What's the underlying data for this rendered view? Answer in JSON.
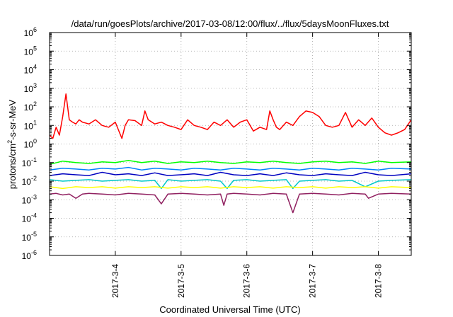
{
  "chart_data": {
    "type": "line",
    "title": "/data/run/goesPlots/archive/2017-03-08/12:00/flux/../flux/5daysMoonFluxes.txt",
    "xlabel": "Coordinated Universal Time (UTC)",
    "ylabel": "protons/cm²-s-sr-MeV",
    "ylabel_parts": {
      "pre": "protons/cm",
      "sup": "2",
      "post": "-s-sr-MeV"
    },
    "xlim": [
      3.0,
      8.5
    ],
    "yscale": "log",
    "ylim": [
      1e-06,
      1000000.0
    ],
    "yticks": [
      {
        "value": -6,
        "base": "10",
        "exp": "-6"
      },
      {
        "value": -5,
        "base": "10",
        "exp": "-5"
      },
      {
        "value": -4,
        "base": "10",
        "exp": "-4"
      },
      {
        "value": -3,
        "base": "10",
        "exp": "-3"
      },
      {
        "value": -2,
        "base": "10",
        "exp": "-2"
      },
      {
        "value": -1,
        "base": "10",
        "exp": "-1"
      },
      {
        "value": 0,
        "base": "10",
        "exp": "0"
      },
      {
        "value": 1,
        "base": "10",
        "exp": "1"
      },
      {
        "value": 2,
        "base": "10",
        "exp": "2"
      },
      {
        "value": 3,
        "base": "10",
        "exp": "3"
      },
      {
        "value": 4,
        "base": "10",
        "exp": "4"
      },
      {
        "value": 5,
        "base": "10",
        "exp": "5"
      },
      {
        "value": 6,
        "base": "10",
        "exp": "6"
      }
    ],
    "xticks": [
      {
        "value": 4,
        "label": "2017-3-4"
      },
      {
        "value": 5,
        "label": "2017-3-5"
      },
      {
        "value": 6,
        "label": "2017-3-6"
      },
      {
        "value": 7,
        "label": "2017-3-7"
      },
      {
        "value": 8,
        "label": "2017-3-8"
      }
    ],
    "grid": true,
    "series": [
      {
        "color": "#ff0000",
        "width": 1.5,
        "x": [
          3.0,
          3.05,
          3.1,
          3.15,
          3.2,
          3.25,
          3.3,
          3.35,
          3.4,
          3.45,
          3.5,
          3.6,
          3.7,
          3.8,
          3.9,
          4.0,
          4.1,
          4.15,
          4.2,
          4.3,
          4.4,
          4.45,
          4.5,
          4.6,
          4.7,
          4.8,
          4.9,
          5.0,
          5.1,
          5.2,
          5.3,
          5.4,
          5.5,
          5.6,
          5.7,
          5.8,
          5.9,
          6.0,
          6.1,
          6.2,
          6.3,
          6.35,
          6.4,
          6.45,
          6.5,
          6.6,
          6.7,
          6.8,
          6.9,
          7.0,
          7.1,
          7.2,
          7.3,
          7.4,
          7.5,
          7.55,
          7.6,
          7.7,
          7.8,
          7.9,
          8.0,
          8.1,
          8.2,
          8.3,
          8.4,
          8.5
        ],
        "y": [
          3,
          2,
          8,
          3,
          30,
          500,
          20,
          15,
          12,
          20,
          15,
          12,
          20,
          10,
          8,
          15,
          2,
          10,
          20,
          18,
          10,
          60,
          20,
          12,
          15,
          10,
          8,
          6,
          20,
          10,
          8,
          6,
          15,
          10,
          20,
          8,
          15,
          20,
          5,
          8,
          6,
          60,
          20,
          8,
          6,
          15,
          10,
          30,
          60,
          50,
          30,
          10,
          8,
          10,
          50,
          20,
          8,
          20,
          10,
          25,
          8,
          4,
          3,
          4,
          6,
          20
        ]
      },
      {
        "color": "#00ff00",
        "width": 1.5,
        "x": [
          3.0,
          3.2,
          3.4,
          3.6,
          3.8,
          4.0,
          4.2,
          4.4,
          4.6,
          4.8,
          5.0,
          5.2,
          5.4,
          5.6,
          5.8,
          6.0,
          6.2,
          6.4,
          6.6,
          6.8,
          7.0,
          7.2,
          7.4,
          7.6,
          7.8,
          8.0,
          8.2,
          8.5
        ],
        "y": [
          0.08,
          0.12,
          0.1,
          0.09,
          0.11,
          0.1,
          0.13,
          0.1,
          0.12,
          0.09,
          0.11,
          0.1,
          0.12,
          0.1,
          0.09,
          0.11,
          0.1,
          0.12,
          0.1,
          0.09,
          0.11,
          0.12,
          0.1,
          0.11,
          0.09,
          0.12,
          0.1,
          0.11
        ]
      },
      {
        "color": "#0080ff",
        "width": 1.5,
        "x": [
          3.0,
          3.2,
          3.4,
          3.6,
          3.8,
          4.0,
          4.2,
          4.4,
          4.6,
          4.8,
          5.0,
          5.2,
          5.4,
          5.6,
          5.8,
          6.0,
          6.2,
          6.4,
          6.6,
          6.8,
          7.0,
          7.2,
          7.4,
          7.6,
          7.8,
          8.0,
          8.2,
          8.5
        ],
        "y": [
          0.04,
          0.05,
          0.045,
          0.04,
          0.05,
          0.045,
          0.055,
          0.04,
          0.05,
          0.045,
          0.04,
          0.05,
          0.045,
          0.04,
          0.05,
          0.045,
          0.04,
          0.05,
          0.045,
          0.04,
          0.05,
          0.045,
          0.04,
          0.05,
          0.045,
          0.04,
          0.05,
          0.045
        ]
      },
      {
        "color": "#0000c0",
        "width": 1.5,
        "x": [
          3.0,
          3.2,
          3.4,
          3.6,
          3.8,
          4.0,
          4.2,
          4.4,
          4.6,
          4.8,
          5.0,
          5.2,
          5.4,
          5.6,
          5.8,
          6.0,
          6.2,
          6.4,
          6.6,
          6.8,
          7.0,
          7.2,
          7.4,
          7.6,
          7.8,
          8.0,
          8.2,
          8.5
        ],
        "y": [
          0.02,
          0.025,
          0.022,
          0.02,
          0.03,
          0.022,
          0.025,
          0.02,
          0.028,
          0.02,
          0.022,
          0.025,
          0.02,
          0.03,
          0.022,
          0.02,
          0.025,
          0.02,
          0.028,
          0.022,
          0.02,
          0.025,
          0.022,
          0.02,
          0.03,
          0.022,
          0.02,
          0.025
        ]
      },
      {
        "color": "#00c8c8",
        "width": 1.5,
        "x": [
          3.0,
          3.2,
          3.4,
          3.6,
          3.8,
          4.0,
          4.2,
          4.4,
          4.6,
          4.7,
          4.8,
          5.0,
          5.2,
          5.4,
          5.6,
          5.7,
          5.8,
          6.0,
          6.2,
          6.4,
          6.6,
          6.7,
          6.8,
          7.0,
          7.2,
          7.4,
          7.6,
          7.8,
          8.0,
          8.2,
          8.5
        ],
        "y": [
          0.012,
          0.01,
          0.011,
          0.012,
          0.01,
          0.011,
          0.012,
          0.01,
          0.011,
          0.004,
          0.012,
          0.01,
          0.011,
          0.012,
          0.01,
          0.004,
          0.011,
          0.012,
          0.01,
          0.011,
          0.012,
          0.004,
          0.01,
          0.011,
          0.012,
          0.01,
          0.011,
          0.005,
          0.01,
          0.011,
          0.012
        ]
      },
      {
        "color": "#ffff00",
        "width": 1.5,
        "x": [
          3.0,
          3.2,
          3.4,
          3.6,
          3.8,
          4.0,
          4.2,
          4.4,
          4.6,
          4.8,
          5.0,
          5.2,
          5.4,
          5.6,
          5.8,
          6.0,
          6.2,
          6.4,
          6.6,
          6.8,
          7.0,
          7.2,
          7.4,
          7.6,
          7.8,
          8.0,
          8.2,
          8.5
        ],
        "y": [
          0.005,
          0.004,
          0.005,
          0.0045,
          0.005,
          0.0042,
          0.005,
          0.0045,
          0.005,
          0.0042,
          0.005,
          0.0045,
          0.005,
          0.0042,
          0.005,
          0.0045,
          0.005,
          0.0042,
          0.005,
          0.0045,
          0.005,
          0.0042,
          0.005,
          0.0045,
          0.005,
          0.0042,
          0.005,
          0.0045
        ]
      },
      {
        "color": "#902060",
        "width": 1.5,
        "x": [
          3.0,
          3.1,
          3.2,
          3.3,
          3.4,
          3.5,
          3.6,
          3.8,
          4.0,
          4.2,
          4.4,
          4.6,
          4.7,
          4.8,
          5.0,
          5.2,
          5.4,
          5.6,
          5.65,
          5.7,
          5.8,
          6.0,
          6.2,
          6.4,
          6.6,
          6.7,
          6.8,
          7.0,
          7.2,
          7.4,
          7.6,
          7.8,
          7.85,
          8.0,
          8.2,
          8.5
        ],
        "y": [
          0.002,
          0.0022,
          0.0018,
          0.002,
          0.0012,
          0.002,
          0.0022,
          0.002,
          0.0018,
          0.0022,
          0.002,
          0.0018,
          0.0006,
          0.002,
          0.0022,
          0.002,
          0.0018,
          0.002,
          0.0005,
          0.002,
          0.0022,
          0.002,
          0.0018,
          0.0022,
          0.002,
          0.0002,
          0.002,
          0.0022,
          0.002,
          0.0018,
          0.0022,
          0.002,
          0.0012,
          0.002,
          0.0022,
          0.002
        ]
      }
    ]
  }
}
